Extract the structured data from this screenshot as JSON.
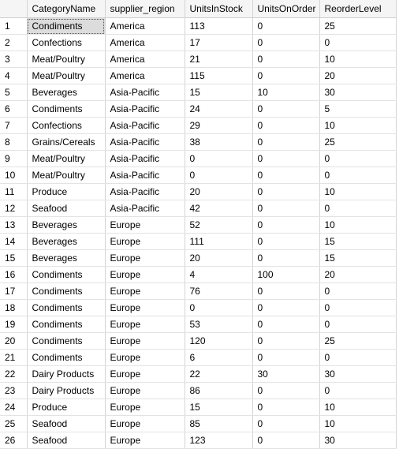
{
  "grid": {
    "columns": [
      "CategoryName",
      "supplier_region",
      "UnitsInStock",
      "UnitsOnOrder",
      "ReorderLevel"
    ],
    "selected_cell": {
      "row": 1,
      "column": "CategoryName"
    },
    "rows": [
      [
        "1",
        "Condiments",
        "America",
        "113",
        "0",
        "25"
      ],
      [
        "2",
        "Confections",
        "America",
        "17",
        "0",
        "0"
      ],
      [
        "3",
        "Meat/Poultry",
        "America",
        "21",
        "0",
        "10"
      ],
      [
        "4",
        "Meat/Poultry",
        "America",
        "115",
        "0",
        "20"
      ],
      [
        "5",
        "Beverages",
        "Asia-Pacific",
        "15",
        "10",
        "30"
      ],
      [
        "6",
        "Condiments",
        "Asia-Pacific",
        "24",
        "0",
        "5"
      ],
      [
        "7",
        "Confections",
        "Asia-Pacific",
        "29",
        "0",
        "10"
      ],
      [
        "8",
        "Grains/Cereals",
        "Asia-Pacific",
        "38",
        "0",
        "25"
      ],
      [
        "9",
        "Meat/Poultry",
        "Asia-Pacific",
        "0",
        "0",
        "0"
      ],
      [
        "10",
        "Meat/Poultry",
        "Asia-Pacific",
        "0",
        "0",
        "0"
      ],
      [
        "11",
        "Produce",
        "Asia-Pacific",
        "20",
        "0",
        "10"
      ],
      [
        "12",
        "Seafood",
        "Asia-Pacific",
        "42",
        "0",
        "0"
      ],
      [
        "13",
        "Beverages",
        "Europe",
        "52",
        "0",
        "10"
      ],
      [
        "14",
        "Beverages",
        "Europe",
        "111",
        "0",
        "15"
      ],
      [
        "15",
        "Beverages",
        "Europe",
        "20",
        "0",
        "15"
      ],
      [
        "16",
        "Condiments",
        "Europe",
        "4",
        "100",
        "20"
      ],
      [
        "17",
        "Condiments",
        "Europe",
        "76",
        "0",
        "0"
      ],
      [
        "18",
        "Condiments",
        "Europe",
        "0",
        "0",
        "0"
      ],
      [
        "19",
        "Condiments",
        "Europe",
        "53",
        "0",
        "0"
      ],
      [
        "20",
        "Condiments",
        "Europe",
        "120",
        "0",
        "25"
      ],
      [
        "21",
        "Condiments",
        "Europe",
        "6",
        "0",
        "0"
      ],
      [
        "22",
        "Dairy Products",
        "Europe",
        "22",
        "30",
        "30"
      ],
      [
        "23",
        "Dairy Products",
        "Europe",
        "86",
        "0",
        "0"
      ],
      [
        "24",
        "Produce",
        "Europe",
        "15",
        "0",
        "10"
      ],
      [
        "25",
        "Seafood",
        "Europe",
        "85",
        "0",
        "10"
      ],
      [
        "26",
        "Seafood",
        "Europe",
        "123",
        "0",
        "30"
      ]
    ]
  }
}
